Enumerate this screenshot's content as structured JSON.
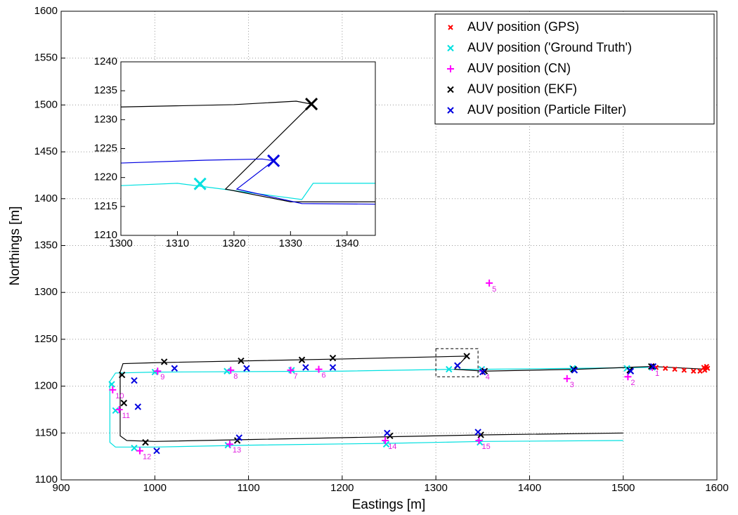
{
  "chart_data": [
    {
      "type": "scatter",
      "xlabel": "Eastings [m]",
      "ylabel": "Northings [m]",
      "xlim": [
        900,
        1600
      ],
      "ylim": [
        1100,
        1600
      ],
      "xticks": [
        900,
        1000,
        1100,
        1200,
        1300,
        1400,
        1500,
        1600
      ],
      "yticks": [
        1100,
        1150,
        1200,
        1250,
        1300,
        1350,
        1400,
        1450,
        1500,
        1550,
        1600
      ],
      "grid": true,
      "legend": "upper right",
      "series": [
        {
          "name": "AUV position (GPS)",
          "color": "#ff0000",
          "marker": "x",
          "size": 3,
          "x": [
            1535,
            1545,
            1555,
            1565,
            1575,
            1582,
            1587,
            1590,
            1589,
            1586
          ],
          "y": [
            1220,
            1219,
            1218,
            1217,
            1216,
            1216,
            1217,
            1219,
            1221,
            1220
          ]
        },
        {
          "name": "AUV position ('Ground Truth')",
          "color": "#00e0e0",
          "marker": "x",
          "size": 4,
          "x": [
            1531,
            1504,
            1446,
            1349,
            1314,
            1146,
            1077,
            1000,
            954,
            958,
            978,
            1078,
            1247,
            1347
          ],
          "y": [
            1220,
            1219,
            1219,
            1218,
            1218,
            1217,
            1216,
            1215,
            1202,
            1174,
            1134,
            1137,
            1138,
            1140
          ],
          "track": {
            "x": [
              1531,
              1450,
              1350,
              1320,
              1200,
              1000,
              958,
              952,
              952,
              958,
              1000,
              1100,
              1250,
              1350,
              1500
            ],
            "y": [
              1220,
              1219,
              1218,
              1218,
              1216,
              1215,
              1214,
              1205,
              1140,
              1135,
              1135,
              1137,
              1139,
              1141,
              1142
            ]
          }
        },
        {
          "name": "AUV position (CN)",
          "color": "#ff00ff",
          "marker": "+",
          "size": 5,
          "x": [
            1531,
            1505,
            1440,
            1350,
            1357,
            1175,
            1145,
            1081,
            1003,
            955,
            962,
            984,
            1080,
            1246,
            1346
          ],
          "y": [
            1220,
            1210,
            1208,
            1216,
            1310,
            1218,
            1217,
            1217,
            1216,
            1196,
            1175,
            1131,
            1138,
            1142,
            1142
          ],
          "labels": [
            "1",
            "2",
            "3",
            "4",
            "5",
            "6",
            "7",
            "8",
            "9",
            "10",
            "11",
            "12",
            "13",
            "14",
            "15"
          ]
        },
        {
          "name": "AUV position (EKF)",
          "color": "#000000",
          "marker": "x",
          "size": 4,
          "x": [
            1530,
            1507,
            1447,
            1352,
            1333,
            1190,
            1157,
            1092,
            1010,
            965,
            967,
            990,
            1088,
            1251,
            1348
          ],
          "y": [
            1221,
            1217,
            1218,
            1216,
            1232,
            1230,
            1228,
            1227,
            1226,
            1212,
            1182,
            1140,
            1142,
            1147,
            1148
          ],
          "track": {
            "x": [
              1590,
              1530,
              1450,
              1352,
              1320,
              1333,
              1200,
              1000,
              966,
              963,
              963,
              970,
              1000,
              1100,
              1250,
              1350,
              1500
            ],
            "y": [
              1218,
              1221,
              1218,
              1216,
              1218,
              1232,
              1229,
              1225,
              1224,
              1215,
              1147,
              1142,
              1141,
              1143,
              1146,
              1148,
              1150
            ]
          }
        },
        {
          "name": "AUV position (Particle Filter)",
          "color": "#0000e0",
          "marker": "x",
          "size": 4,
          "x": [
            1532,
            1508,
            1448,
            1350,
            1323,
            1190,
            1161,
            1098,
            1021,
            978,
            982,
            1002,
            1090,
            1248,
            1345
          ],
          "y": [
            1221,
            1216,
            1217,
            1215,
            1222,
            1220,
            1220,
            1219,
            1219,
            1206,
            1178,
            1131,
            1145,
            1150,
            1151
          ]
        }
      ],
      "zoom_box": {
        "x": [
          1300,
          1345
        ],
        "y": [
          1210,
          1240
        ]
      }
    },
    {
      "type": "line",
      "xlim": [
        1300,
        1345
      ],
      "ylim": [
        1210,
        1240
      ],
      "xticks": [
        1300,
        1310,
        1320,
        1330,
        1340
      ],
      "yticks": [
        1210,
        1215,
        1220,
        1225,
        1230,
        1235,
        1240
      ],
      "grid": false,
      "series": [
        {
          "color": "#00e0e0",
          "marker": "x",
          "size": 8,
          "x": [
            1314
          ],
          "y": [
            1218.9
          ],
          "track": {
            "x": [
              1300,
              1310,
              1318,
              1332,
              1334,
              1345
            ],
            "y": [
              1218.6,
              1219,
              1218,
              1216.2,
              1219,
              1219
            ]
          }
        },
        {
          "color": "#000000",
          "marker": "x",
          "size": 8,
          "x": [
            1333.7
          ],
          "y": [
            1232.7
          ],
          "track": {
            "x": [
              1300,
              1320,
              1331,
              1333.7,
              1318.5,
              1330,
              1345
            ],
            "y": [
              1232.2,
              1232.6,
              1233.2,
              1232.7,
              1218,
              1215.8,
              1215.8
            ]
          }
        },
        {
          "color": "#0000e0",
          "marker": "x",
          "size": 8,
          "x": [
            1327
          ],
          "y": [
            1222.9
          ],
          "track": {
            "x": [
              1300,
              1315,
              1325,
              1327,
              1320.5,
              1332,
              1345
            ],
            "y": [
              1222.5,
              1223,
              1223.2,
              1222.9,
              1218,
              1215.5,
              1215.4
            ]
          }
        }
      ]
    }
  ]
}
